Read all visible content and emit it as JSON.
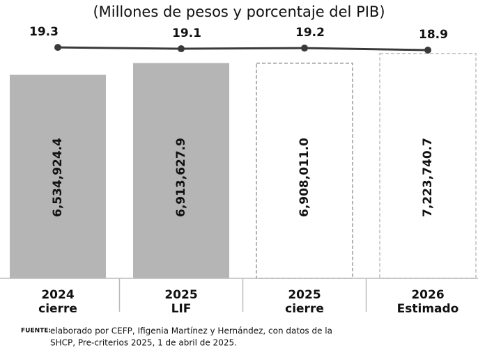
{
  "chart_data": {
    "type": "bar_line",
    "subtitle": "(Millones de pesos y porcentaje del PIB)",
    "categories": [
      [
        "2024",
        "cierre"
      ],
      [
        "2025",
        "LIF"
      ],
      [
        "2025",
        "cierre"
      ],
      [
        "2026",
        "Estimado"
      ]
    ],
    "series": [
      {
        "name": "Millones de pesos",
        "type": "bar",
        "colors": [
          "#b5b5b5",
          "#b5b5b5",
          "#9a9a9a",
          "#bdbdbd"
        ],
        "styles": [
          "solid",
          "solid",
          "dashed",
          "dashed"
        ],
        "values": [
          6534924.4,
          6913627.9,
          6908011.0,
          7223740.7
        ],
        "value_labels": [
          "6,534,924.4",
          "6,913,627.9",
          "6,908,011.0",
          "7,223,740.7"
        ]
      },
      {
        "name": "Porcentaje del PIB",
        "type": "line",
        "axis": "y2",
        "color": "#3a3a3a",
        "values": [
          19.3,
          19.1,
          19.2,
          18.9
        ]
      }
    ],
    "ylim": [
      0,
      8000000
    ],
    "y2lim": [
      -15,
      22
    ],
    "source_label": "FUENTE:",
    "source": [
      "elaborado por CEFP, Ifigenia Martínez y Hernández, con datos de la",
      "SHCP, Pre-criterios 2025, 1 de abril de 2025."
    ]
  }
}
